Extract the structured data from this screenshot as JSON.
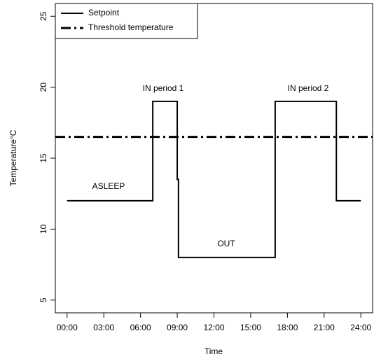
{
  "chart_data": {
    "type": "line",
    "xlabel": "Time",
    "ylabel": "Temperature°C",
    "series": [
      {
        "name": "Setpoint",
        "color": "#000000",
        "x": [
          0,
          7,
          7,
          9,
          9,
          9.1,
          9.1,
          17,
          17,
          22,
          22,
          24
        ],
        "values": [
          12,
          12,
          19,
          19,
          13.5,
          13.5,
          8,
          8,
          19,
          19,
          12,
          12
        ]
      },
      {
        "name": "Threshold temperature",
        "color": "#000000",
        "style": "hline",
        "values": [
          16.5
        ]
      }
    ],
    "annotations": [
      "ASLEEP",
      "IN period 1",
      "OUT",
      "IN period 2"
    ],
    "xlim": [
      -0.96,
      24.96
    ],
    "ylim": [
      4.1,
      25.9
    ],
    "xticks": [
      {
        "value": 0,
        "label": "00:00"
      },
      {
        "value": 3,
        "label": "03:00"
      },
      {
        "value": 6,
        "label": "06:00"
      },
      {
        "value": 9,
        "label": "09:00"
      },
      {
        "value": 12,
        "label": "12:00"
      },
      {
        "value": 15,
        "label": "15:00"
      },
      {
        "value": 18,
        "label": "18:00"
      },
      {
        "value": 21,
        "label": "21:00"
      },
      {
        "value": 24,
        "label": "24:00"
      }
    ],
    "yticks": [
      5,
      10,
      15,
      20,
      25
    ],
    "legend": "top-left"
  }
}
